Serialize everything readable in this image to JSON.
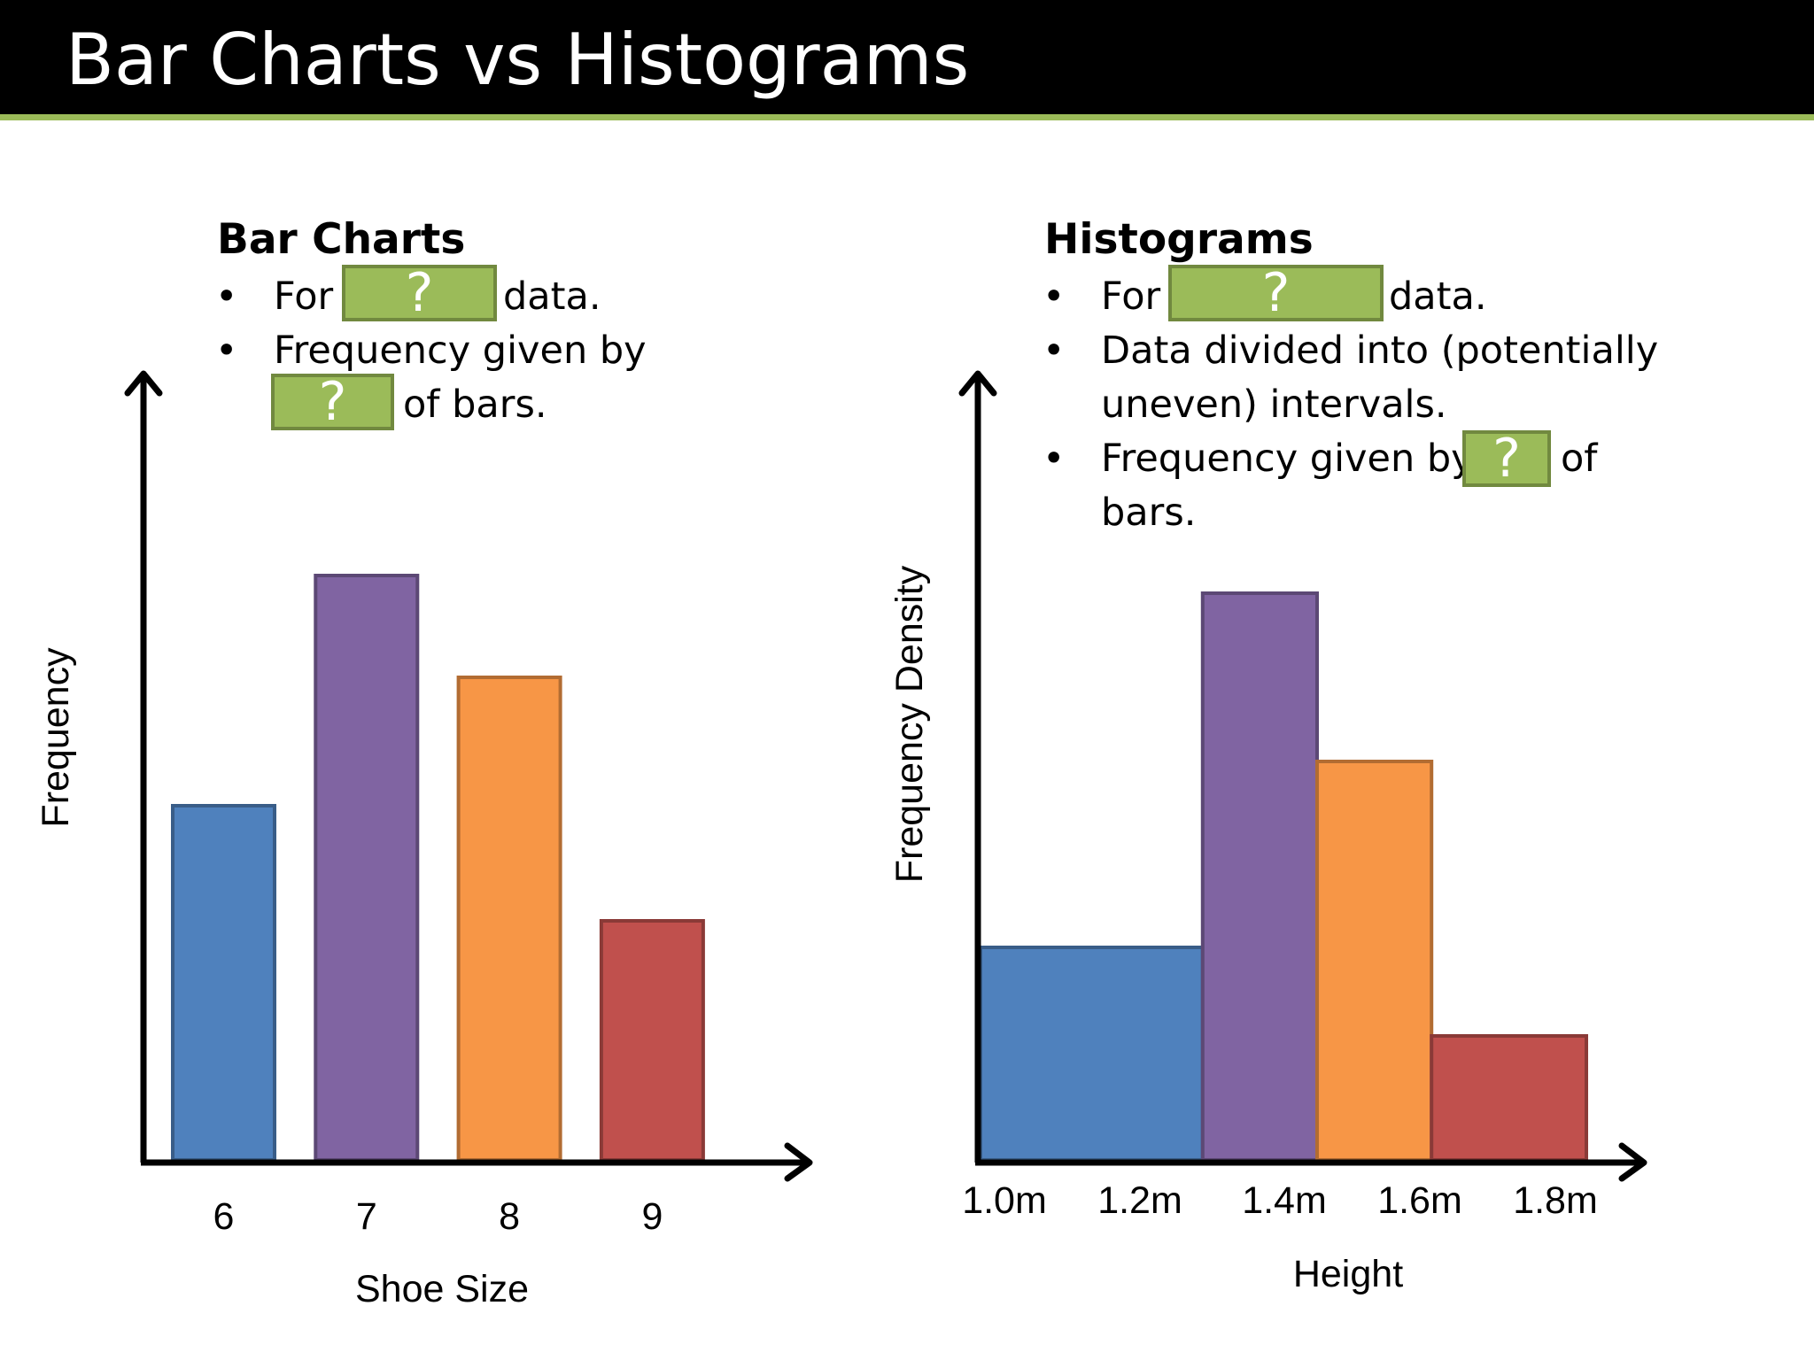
{
  "title": "Bar Charts vs Histograms",
  "colors": {
    "title_bg": "#000000",
    "accent": "#9bbb59",
    "blue": "#4f81bd",
    "purple": "#8064a2",
    "orange": "#f79646",
    "red": "#c0504d"
  },
  "bar_panel": {
    "heading": "Bar Charts",
    "bullet_symbol": "•",
    "b1_before": "For",
    "b1_after": "data.",
    "b2_line1": "Frequency given by",
    "b2_after": "of bars.",
    "placeholder": "?"
  },
  "hist_panel": {
    "heading": "Histograms",
    "bullet_symbol": "•",
    "b1_before": "For",
    "b1_after": "data.",
    "b2_line1": "Data divided into (potentially",
    "b2_line2": "uneven) intervals.",
    "b3_before": "Frequency given by",
    "b3_after": "of",
    "b3_line2": "bars.",
    "placeholder": "?"
  },
  "chart_data": [
    {
      "type": "bar",
      "categories": [
        "6",
        "7",
        "8",
        "9"
      ],
      "values": [
        4,
        6.6,
        5.45,
        2.7
      ],
      "xlabel": "Shoe Size",
      "ylabel": "Frequency",
      "ylim": [
        0,
        9
      ],
      "bar_colors": [
        "#4f81bd",
        "#8064a2",
        "#f79646",
        "#c0504d"
      ]
    },
    {
      "type": "bar",
      "subtype": "histogram",
      "bins": [
        {
          "from": 1.0,
          "to": 1.33,
          "value": 2.4
        },
        {
          "from": 1.33,
          "to": 1.5,
          "value": 6.4
        },
        {
          "from": 1.5,
          "to": 1.67,
          "value": 4.5
        },
        {
          "from": 1.67,
          "to": 1.9,
          "value": 1.4
        }
      ],
      "x_ticks": [
        "1.0m",
        "1.2m",
        "1.4m",
        "1.6m",
        "1.8m"
      ],
      "xlabel": "Height",
      "ylabel": "Frequency Density",
      "ylim": [
        0,
        9
      ],
      "bar_colors": [
        "#4f81bd",
        "#8064a2",
        "#f79646",
        "#c0504d"
      ]
    }
  ]
}
